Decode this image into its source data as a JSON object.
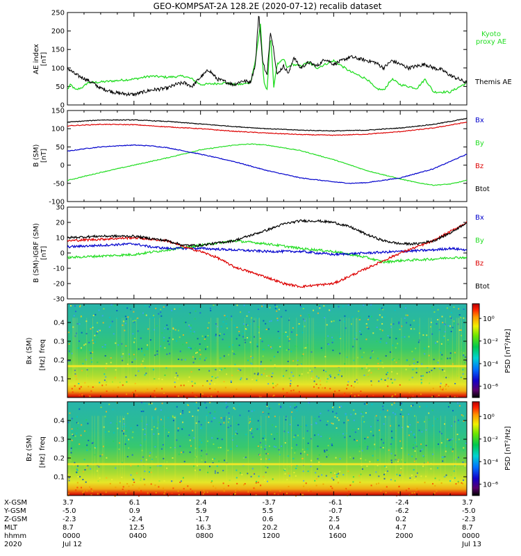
{
  "chart_data": [
    {
      "type": "line",
      "title": "GEO-KOMPSAT-2A 128.2E (2020-07-12) recalib dataset",
      "ylabel": "AE index",
      "yunit": "[nT]",
      "ylim": [
        0,
        250
      ],
      "yticks": [
        "0",
        "50",
        "100",
        "150",
        "200",
        "250"
      ],
      "x_hours": [
        0,
        24
      ],
      "series": [
        {
          "name": "Kyoto proxy AE",
          "label_lines": [
            "Kyoto",
            "proxy AE"
          ],
          "color": "#22dd22",
          "x": [
            0,
            0.2,
            0.5,
            1.0,
            1.2,
            2.0,
            4.0,
            5.0,
            6.0,
            7.0,
            7.5,
            8.0,
            9.0,
            9.5,
            10.0,
            10.5,
            11.0,
            11.3,
            11.6,
            11.8,
            12.0,
            12.2,
            12.4,
            12.6,
            12.8,
            13.0,
            13.2,
            13.5,
            14.0,
            14.5,
            15.0,
            16.0,
            17.0,
            18.0,
            18.5,
            19.0,
            19.5,
            20.0,
            21.0,
            21.5,
            22.0,
            23.0,
            24.0
          ],
          "y": [
            42,
            55,
            40,
            50,
            60,
            62,
            70,
            78,
            75,
            78,
            70,
            55,
            58,
            60,
            55,
            56,
            60,
            120,
            220,
            60,
            40,
            195,
            50,
            110,
            115,
            125,
            100,
            110,
            105,
            115,
            100,
            120,
            90,
            70,
            45,
            40,
            70,
            55,
            45,
            70,
            35,
            35,
            60
          ]
        },
        {
          "name": "Themis AE",
          "label_lines": [
            "Themis AE"
          ],
          "color": "#000000",
          "x": [
            0,
            0.5,
            1.0,
            1.5,
            2.0,
            3.0,
            4.0,
            5.0,
            6.0,
            6.5,
            7.0,
            7.5,
            8.0,
            8.5,
            9.0,
            10.0,
            10.5,
            11.0,
            11.3,
            11.5,
            11.7,
            11.9,
            12.0,
            12.2,
            12.4,
            12.6,
            12.8,
            13.0,
            13.3,
            13.6,
            14.0,
            14.5,
            15.0,
            15.5,
            16.0,
            16.5,
            17.0,
            17.5,
            18.0,
            18.5,
            19.0,
            19.5,
            20.0,
            20.5,
            21.0,
            21.5,
            22.0,
            22.5,
            23.0,
            23.5,
            24.0
          ],
          "y": [
            100,
            82,
            72,
            60,
            45,
            32,
            28,
            40,
            45,
            55,
            60,
            50,
            75,
            95,
            70,
            55,
            65,
            62,
            110,
            250,
            130,
            90,
            80,
            200,
            150,
            80,
            95,
            105,
            85,
            130,
            100,
            115,
            105,
            125,
            110,
            120,
            130,
            125,
            120,
            115,
            100,
            120,
            110,
            100,
            105,
            110,
            100,
            95,
            80,
            70,
            60
          ]
        }
      ]
    },
    {
      "type": "line",
      "ylabel": "B (SM)",
      "yunit": "[nT]",
      "ylim": [
        -100,
        150
      ],
      "yticks": [
        "-100",
        "-50",
        "0",
        "50",
        "100",
        "150"
      ],
      "series": [
        {
          "name": "Bx",
          "color": "#0000cc",
          "x": [
            0,
            1,
            2,
            3,
            4,
            5,
            6,
            8,
            10,
            12,
            14,
            16,
            17,
            18,
            20,
            22,
            23,
            24
          ],
          "y": [
            38,
            45,
            50,
            53,
            55,
            53,
            48,
            30,
            10,
            -15,
            -35,
            -46,
            -50,
            -48,
            -35,
            -10,
            10,
            30
          ]
        },
        {
          "name": "By",
          "color": "#22dd22",
          "x": [
            0,
            2,
            4,
            6,
            8,
            10,
            11,
            12,
            14,
            16,
            18,
            20,
            21,
            22,
            23,
            24
          ],
          "y": [
            -42,
            -20,
            0,
            20,
            42,
            55,
            58,
            55,
            40,
            15,
            -15,
            -38,
            -48,
            -55,
            -52,
            -42
          ]
        },
        {
          "name": "Bz",
          "color": "#dd0000",
          "x": [
            0,
            2,
            4,
            6,
            8,
            10,
            12,
            14,
            16,
            18,
            20,
            22,
            23,
            24
          ],
          "y": [
            108,
            112,
            111,
            105,
            100,
            93,
            88,
            84,
            82,
            85,
            92,
            102,
            110,
            118
          ]
        },
        {
          "name": "Btot",
          "color": "#000000",
          "x": [
            0,
            2,
            4,
            6,
            8,
            10,
            12,
            14,
            16,
            18,
            20,
            22,
            23,
            24
          ],
          "y": [
            118,
            124,
            124,
            120,
            113,
            106,
            100,
            96,
            94,
            96,
            102,
            112,
            120,
            128
          ]
        }
      ]
    },
    {
      "type": "line",
      "ylabel": "B (SM)-IGRF (SM)",
      "yunit": "[nT]",
      "ylim": [
        -30,
        30
      ],
      "yticks": [
        "-30",
        "-20",
        "-10",
        "0",
        "10",
        "20",
        "30"
      ],
      "series": [
        {
          "name": "Bx",
          "color": "#0000cc",
          "x": [
            0,
            2,
            4,
            5,
            6,
            8,
            10,
            12,
            14,
            15,
            16,
            18,
            20,
            22,
            23,
            24
          ],
          "y": [
            4,
            5,
            6,
            4,
            3,
            3,
            2,
            1,
            1,
            0,
            -1,
            0,
            1,
            2,
            3,
            2
          ]
        },
        {
          "name": "By",
          "color": "#22dd22",
          "x": [
            0,
            2,
            4,
            6,
            8,
            10,
            12,
            14,
            16,
            18,
            19,
            20,
            22,
            23,
            24
          ],
          "y": [
            -3,
            -2,
            -1,
            2,
            5,
            8,
            6,
            3,
            1,
            -3,
            -6,
            -5,
            -4,
            -3,
            -3
          ]
        },
        {
          "name": "Bz",
          "color": "#dd0000",
          "x": [
            0,
            2,
            4,
            6,
            7,
            8,
            9,
            10,
            12,
            13,
            14,
            15,
            16,
            17,
            18,
            19,
            20,
            21,
            22,
            23,
            24
          ],
          "y": [
            8,
            9,
            10,
            8,
            4,
            1,
            -3,
            -9,
            -16,
            -20,
            -22,
            -21,
            -20,
            -15,
            -10,
            -5,
            0,
            4,
            8,
            14,
            20
          ]
        },
        {
          "name": "Btot",
          "color": "#000000",
          "x": [
            0,
            2,
            4,
            6,
            7,
            8,
            10,
            12,
            13,
            14,
            15,
            16,
            17,
            18,
            19,
            20,
            21,
            22,
            23,
            24
          ],
          "y": [
            10,
            11,
            11,
            8,
            5,
            5,
            8,
            15,
            19,
            21,
            21,
            20,
            17,
            12,
            8,
            6,
            6,
            8,
            13,
            20
          ]
        }
      ]
    },
    {
      "type": "heatmap",
      "component": "Bx (SM)",
      "ylabel": "freq",
      "yunit": "[Hz]",
      "ylim": [
        0,
        0.5
      ],
      "yticks": [
        "0.1",
        "0.2",
        "0.3",
        "0.4"
      ],
      "colorbar_label": "PSD [nT²/Hz]",
      "colorbar_ticks": [
        "10⁰",
        "10⁻²",
        "10⁻⁴",
        "10⁻⁶"
      ],
      "colorbar_exponents": [
        0,
        -2,
        -4,
        -6
      ],
      "colorbar_range_log": [
        -7,
        1.3
      ],
      "line_freq": 0.167
    },
    {
      "type": "heatmap",
      "component": "Bz (SM)",
      "ylabel": "freq",
      "yunit": "[Hz]",
      "ylim": [
        0,
        0.5
      ],
      "yticks": [
        "0.1",
        "0.2",
        "0.3",
        "0.4"
      ],
      "colorbar_label": "PSD [nT²/Hz]",
      "colorbar_ticks": [
        "10⁰",
        "10⁻²",
        "10⁻⁴",
        "10⁻⁶"
      ],
      "colorbar_exponents": [
        0,
        -2,
        -4,
        -6
      ],
      "colorbar_range_log": [
        -7,
        1.3
      ],
      "line_freq": 0.167
    }
  ],
  "ephemeris": {
    "row_labels": [
      "X-GSM",
      "Y-GSM",
      "Z-GSM",
      "MLT",
      "hhmm",
      "2020"
    ],
    "columns": [
      [
        "3.7",
        "-5.0",
        "-2.3",
        "8.7",
        "0000",
        "Jul 12"
      ],
      [
        "6.1",
        "0.9",
        "-2.4",
        "12.5",
        "0400",
        ""
      ],
      [
        "2.4",
        "5.9",
        "-1.7",
        "16.3",
        "0800",
        ""
      ],
      [
        "-3.7",
        "5.5",
        "0.6",
        "20.2",
        "1200",
        ""
      ],
      [
        "-6.1",
        "-0.7",
        "2.5",
        "0.4",
        "1600",
        ""
      ],
      [
        "-2.4",
        "-6.2",
        "0.2",
        "4.7",
        "2000",
        ""
      ],
      [
        "3.7",
        "-5.0",
        "-2.3",
        "8.7",
        "0000",
        "Jul 13"
      ]
    ]
  }
}
